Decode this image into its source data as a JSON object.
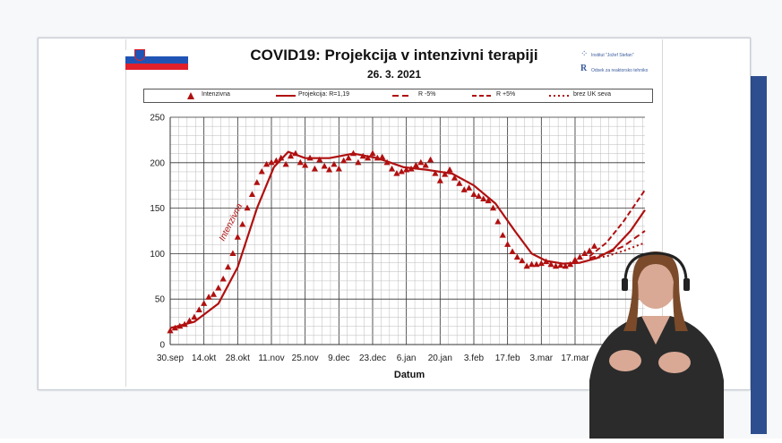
{
  "slide": {
    "title": "COVID19: Projekcija v intenzivni  terapiji",
    "subtitle": "26. 3. 2021",
    "logo_line1": "Institut \"Jožef Stefan\"",
    "logo_line2": "Odsek za reaktorsko tehniko"
  },
  "colors": {
    "series": "#b01010",
    "grid_major": "#333333",
    "grid_minor": "#bbbbbb",
    "frame_accent": "#2e4f8f"
  },
  "chart_data": {
    "type": "line",
    "title": "COVID19: Projekcija v intenzivni  terapiji",
    "subtitle": "26. 3. 2021",
    "xlabel": "Datum",
    "ylabel": "",
    "ylim": [
      0,
      250
    ],
    "yticks": [
      0,
      50,
      100,
      150,
      200,
      250
    ],
    "x_unit": "day",
    "x_start": "2020-09-30",
    "x_end": "2021-04-15",
    "xtick_labels": [
      "30.sep",
      "14.okt",
      "28.okt",
      "11.nov",
      "25.nov",
      "9.dec",
      "23.dec",
      "6.jan",
      "20.jan",
      "3.feb",
      "17.feb",
      "3.mar",
      "17.mar"
    ],
    "xtick_dates": [
      "2020-09-30",
      "2020-10-14",
      "2020-10-28",
      "2020-11-11",
      "2020-11-25",
      "2020-12-09",
      "2020-12-23",
      "2021-01-06",
      "2021-01-20",
      "2021-02-03",
      "2021-02-17",
      "2021-03-03",
      "2021-03-17"
    ],
    "grid": true,
    "legend": {
      "placement": "top",
      "entries": [
        "Intenzivna",
        "Projekcija: R=1,19",
        "R -5%",
        "R +5%",
        "brez UK seva"
      ]
    },
    "annotation": "Intenzivna",
    "series": [
      {
        "name": "Intenzivna",
        "style": "triangle-markers",
        "x": [
          "2020-09-30",
          "2020-10-02",
          "2020-10-04",
          "2020-10-06",
          "2020-10-08",
          "2020-10-10",
          "2020-10-12",
          "2020-10-14",
          "2020-10-16",
          "2020-10-18",
          "2020-10-20",
          "2020-10-22",
          "2020-10-24",
          "2020-10-26",
          "2020-10-28",
          "2020-10-30",
          "2020-11-01",
          "2020-11-03",
          "2020-11-05",
          "2020-11-07",
          "2020-11-09",
          "2020-11-11",
          "2020-11-13",
          "2020-11-15",
          "2020-11-17",
          "2020-11-19",
          "2020-11-21",
          "2020-11-23",
          "2020-11-25",
          "2020-11-27",
          "2020-11-29",
          "2020-12-01",
          "2020-12-03",
          "2020-12-05",
          "2020-12-07",
          "2020-12-09",
          "2020-12-11",
          "2020-12-13",
          "2020-12-15",
          "2020-12-17",
          "2020-12-19",
          "2020-12-21",
          "2020-12-23",
          "2020-12-25",
          "2020-12-27",
          "2020-12-29",
          "2020-12-31",
          "2021-01-02",
          "2021-01-04",
          "2021-01-06",
          "2021-01-08",
          "2021-01-10",
          "2021-01-12",
          "2021-01-14",
          "2021-01-16",
          "2021-01-18",
          "2021-01-20",
          "2021-01-22",
          "2021-01-24",
          "2021-01-26",
          "2021-01-28",
          "2021-01-30",
          "2021-02-01",
          "2021-02-03",
          "2021-02-05",
          "2021-02-07",
          "2021-02-09",
          "2021-02-11",
          "2021-02-13",
          "2021-02-15",
          "2021-02-17",
          "2021-02-19",
          "2021-02-21",
          "2021-02-23",
          "2021-02-25",
          "2021-02-27",
          "2021-03-01",
          "2021-03-03",
          "2021-03-05",
          "2021-03-07",
          "2021-03-09",
          "2021-03-11",
          "2021-03-13",
          "2021-03-15",
          "2021-03-17",
          "2021-03-19",
          "2021-03-21",
          "2021-03-23",
          "2021-03-25"
        ],
        "values": [
          15,
          18,
          20,
          22,
          26,
          30,
          38,
          45,
          52,
          55,
          62,
          72,
          85,
          100,
          118,
          132,
          150,
          165,
          178,
          190,
          198,
          200,
          202,
          205,
          198,
          207,
          210,
          200,
          197,
          205,
          193,
          203,
          196,
          192,
          198,
          193,
          202,
          205,
          210,
          200,
          207,
          205,
          210,
          205,
          206,
          200,
          193,
          188,
          190,
          192,
          193,
          197,
          200,
          197,
          203,
          188,
          180,
          187,
          192,
          183,
          177,
          170,
          172,
          165,
          163,
          160,
          158,
          150,
          135,
          120,
          110,
          102,
          96,
          92,
          86,
          88,
          88,
          89,
          91,
          88,
          86,
          87,
          86,
          88,
          93,
          96,
          100,
          103,
          108
        ]
      },
      {
        "name": "Projekcija: R=1,19",
        "style": "solid",
        "x": [
          "2020-09-30",
          "2020-10-10",
          "2020-10-20",
          "2020-10-28",
          "2020-11-05",
          "2020-11-12",
          "2020-11-18",
          "2020-11-25",
          "2020-12-05",
          "2020-12-15",
          "2020-12-25",
          "2021-01-05",
          "2021-01-15",
          "2021-01-25",
          "2021-02-03",
          "2021-02-12",
          "2021-02-20",
          "2021-02-27",
          "2021-03-05",
          "2021-03-12",
          "2021-03-19",
          "2021-03-26",
          "2021-04-02",
          "2021-04-09",
          "2021-04-15"
        ],
        "values": [
          18,
          25,
          45,
          85,
          150,
          195,
          212,
          205,
          205,
          210,
          205,
          195,
          192,
          188,
          175,
          155,
          125,
          100,
          92,
          89,
          90,
          95,
          105,
          125,
          148
        ]
      },
      {
        "name": "R -5%",
        "style": "dashed",
        "x": [
          "2021-03-23",
          "2021-03-30",
          "2021-04-06",
          "2021-04-15"
        ],
        "values": [
          95,
          100,
          108,
          125
        ]
      },
      {
        "name": "R +5%",
        "style": "long-dashed",
        "x": [
          "2021-03-23",
          "2021-03-30",
          "2021-04-06",
          "2021-04-15"
        ],
        "values": [
          97,
          112,
          135,
          170
        ]
      },
      {
        "name": "brez UK seva",
        "style": "dotted",
        "x": [
          "2021-03-23",
          "2021-03-30",
          "2021-04-06",
          "2021-04-15"
        ],
        "values": [
          94,
          97,
          103,
          112
        ]
      }
    ]
  }
}
